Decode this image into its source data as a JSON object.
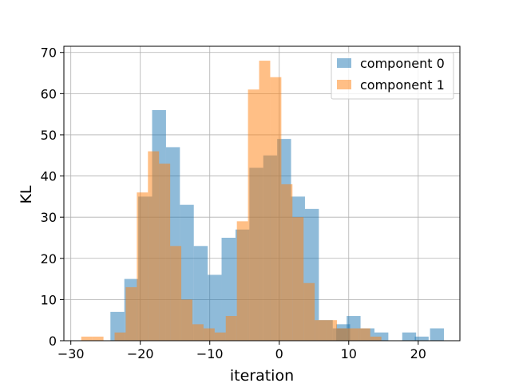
{
  "chart_data": {
    "type": "histogram",
    "xlabel": "iteration",
    "ylabel": "KL",
    "xlim": [
      -31,
      26
    ],
    "ylim": [
      0,
      71.5
    ],
    "xticks": [
      -30,
      -20,
      -10,
      0,
      10,
      20
    ],
    "yticks": [
      0,
      10,
      20,
      30,
      40,
      50,
      60,
      70
    ],
    "grid": true,
    "legend_position": "top-right",
    "series": [
      {
        "name": "component 0",
        "color": "#1f77b4",
        "alpha": 0.5,
        "bin_width": 2.0,
        "bins": [
          [
            -24.3,
            7
          ],
          [
            -22.3,
            15
          ],
          [
            -20.3,
            35
          ],
          [
            -18.3,
            56
          ],
          [
            -16.3,
            47
          ],
          [
            -14.3,
            33
          ],
          [
            -12.3,
            23
          ],
          [
            -10.3,
            16
          ],
          [
            -8.3,
            25
          ],
          [
            -6.3,
            27
          ],
          [
            -4.3,
            42
          ],
          [
            -2.3,
            45
          ],
          [
            -0.3,
            49
          ],
          [
            1.7,
            35
          ],
          [
            3.7,
            32
          ],
          [
            5.7,
            5
          ],
          [
            7.7,
            3
          ],
          [
            9.7,
            6
          ],
          [
            11.7,
            3
          ],
          [
            13.7,
            2
          ],
          [
            15.7,
            0
          ],
          [
            17.7,
            2
          ],
          [
            19.7,
            0
          ],
          [
            21.7,
            3
          ]
        ],
        "extra_bins": [
          [
            19.5,
            1
          ],
          [
            8.2,
            4
          ]
        ]
      },
      {
        "name": "component 1",
        "color": "#ff7f0e",
        "alpha": 0.5,
        "bin_width": 1.6,
        "bins": [
          [
            -28.5,
            1
          ],
          [
            -26.9,
            1
          ],
          [
            -25.3,
            0
          ],
          [
            -23.7,
            2
          ],
          [
            -22.1,
            13
          ],
          [
            -20.5,
            36
          ],
          [
            -18.9,
            46
          ],
          [
            -17.3,
            43
          ],
          [
            -15.7,
            23
          ],
          [
            -14.1,
            10
          ],
          [
            -12.5,
            4
          ],
          [
            -10.9,
            3
          ],
          [
            -9.3,
            2
          ],
          [
            -7.7,
            6
          ],
          [
            -6.1,
            29
          ],
          [
            -4.5,
            61
          ],
          [
            -2.9,
            68
          ],
          [
            -1.3,
            64
          ],
          [
            0.3,
            38
          ],
          [
            1.9,
            30
          ],
          [
            3.5,
            14
          ],
          [
            5.1,
            5
          ],
          [
            6.7,
            5
          ],
          [
            8.3,
            3
          ],
          [
            9.9,
            3
          ],
          [
            11.5,
            3
          ],
          [
            13.1,
            1
          ]
        ]
      }
    ]
  }
}
